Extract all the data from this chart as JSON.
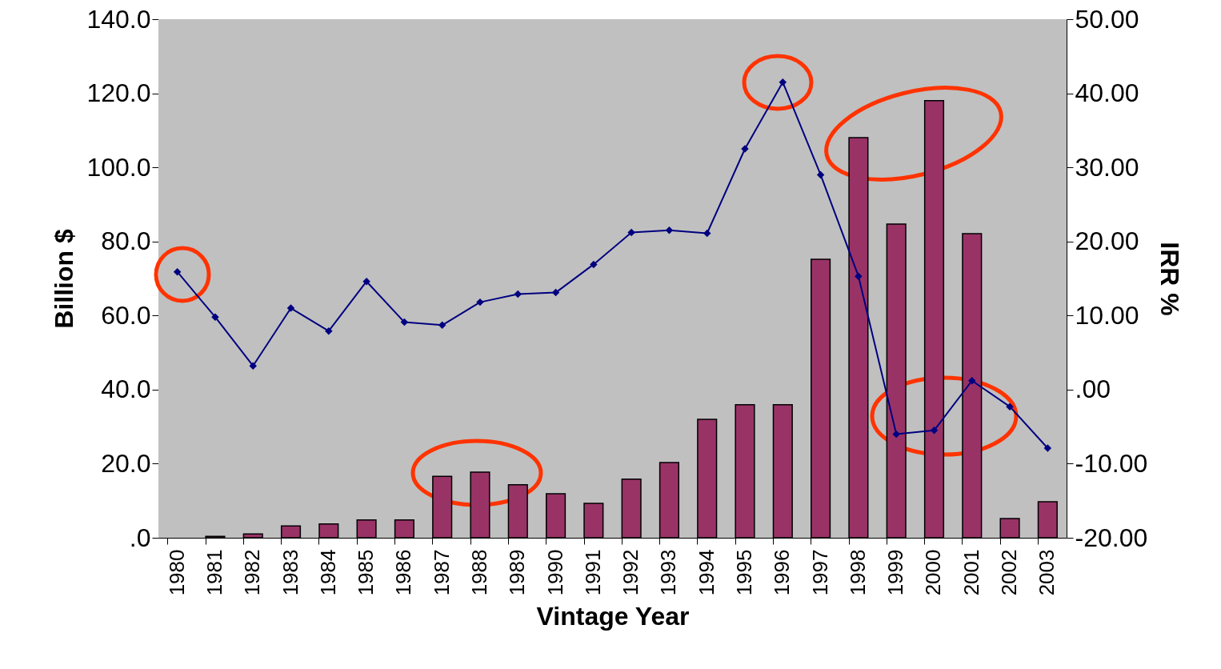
{
  "chart_data": {
    "type": "bar",
    "xlabel": "Vintage Year",
    "ylabel": "Billion $",
    "y2label": "IRR %",
    "categories": [
      "1980",
      "1981",
      "1982",
      "1983",
      "1984",
      "1985",
      "1986",
      "1987",
      "1988",
      "1989",
      "1990",
      "1991",
      "1992",
      "1993",
      "1994",
      "1995",
      "1996",
      "1997",
      "1998",
      "1999",
      "2000",
      "2001",
      "2002",
      "2003"
    ],
    "series": [
      {
        "color": "#993366",
        "values": [
          null,
          0.4,
          1.0,
          3.2,
          3.7,
          4.8,
          4.8,
          16.6,
          17.7,
          14.3,
          11.9,
          9.3,
          15.8,
          20.3,
          32.0,
          35.9,
          35.9,
          75.2,
          108.0,
          84.7,
          118.0,
          82.1,
          5.2,
          9.7
        ]
      },
      {
        "type": "line",
        "axis": "y2",
        "color": "#000080",
        "marker": "diamond",
        "line_style": "solid",
        "values": [
          15.9,
          9.8,
          3.2,
          11.0,
          7.9,
          14.6,
          9.1,
          8.7,
          11.8,
          12.9,
          13.1,
          16.9,
          21.2,
          21.5,
          21.1,
          32.5,
          41.5,
          29.0,
          15.3,
          -6.0,
          -5.5,
          1.2,
          -2.3,
          -7.9
        ]
      }
    ],
    "ylim": [
      0,
      140
    ],
    "yticks": [
      {
        "value": 0,
        "label": ".0"
      },
      {
        "value": 20,
        "label": "20.0"
      },
      {
        "value": 40,
        "label": "40.0"
      },
      {
        "value": 60,
        "label": "60.0"
      },
      {
        "value": 80,
        "label": "80.0"
      },
      {
        "value": 100,
        "label": "100.0"
      },
      {
        "value": 120,
        "label": "120.0"
      },
      {
        "value": 140,
        "label": "140.0"
      }
    ],
    "y2lim": [
      -20,
      50
    ],
    "y2ticks": [
      {
        "value": -20,
        "label": "-20.00"
      },
      {
        "value": -10,
        "label": "-10.00"
      },
      {
        "value": 0,
        "label": ".00"
      },
      {
        "value": 10,
        "label": "10.00"
      },
      {
        "value": 20,
        "label": "20.00"
      },
      {
        "value": 30,
        "label": "30.00"
      },
      {
        "value": 40,
        "label": "40.00"
      },
      {
        "value": 50,
        "label": "50.00"
      }
    ]
  }
}
